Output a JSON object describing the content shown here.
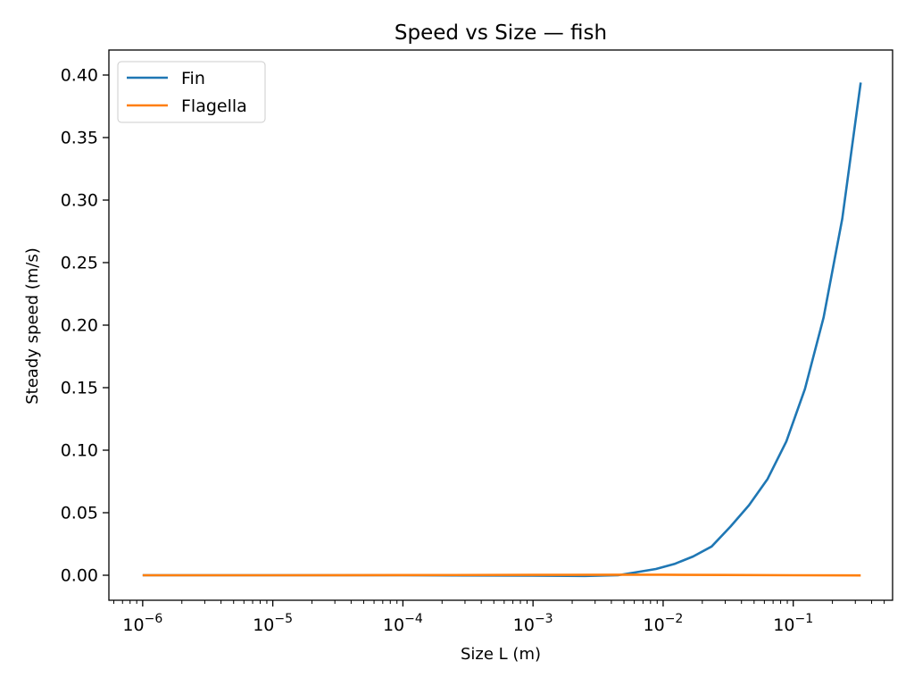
{
  "chart_data": {
    "type": "line",
    "title": "Speed vs Size — fish",
    "xlabel": "Size L (m)",
    "ylabel": "Steady speed (m/s)",
    "xscale": "log",
    "xlim": [
      5.5e-07,
      0.58
    ],
    "ylim": [
      -0.02,
      0.42
    ],
    "grid": false,
    "legend_position": "top-left",
    "x_ticks": [
      {
        "value": 1e-06,
        "base": "10",
        "exp": "−6"
      },
      {
        "value": 1e-05,
        "base": "10",
        "exp": "−5"
      },
      {
        "value": 0.0001,
        "base": "10",
        "exp": "−4"
      },
      {
        "value": 0.001,
        "base": "10",
        "exp": "−3"
      },
      {
        "value": 0.01,
        "base": "10",
        "exp": "−2"
      },
      {
        "value": 0.1,
        "base": "10",
        "exp": "−1"
      }
    ],
    "y_ticks": [
      "0.00",
      "0.05",
      "0.10",
      "0.15",
      "0.20",
      "0.25",
      "0.30",
      "0.35",
      "0.40"
    ],
    "series": [
      {
        "name": "Fin",
        "color": "#1f77b4",
        "x": [
          1e-06,
          1e-05,
          0.0001,
          0.001,
          0.0025,
          0.0045,
          0.0063,
          0.0088,
          0.0122,
          0.017,
          0.0236,
          0.033,
          0.0457,
          0.0635,
          0.0885,
          0.123,
          0.171,
          0.238,
          0.33
        ],
        "y": [
          0.0,
          0.0,
          0.0,
          -0.0003,
          -0.0006,
          0.0,
          0.0025,
          0.005,
          0.009,
          0.015,
          0.023,
          0.039,
          0.056,
          0.077,
          0.107,
          0.149,
          0.206,
          0.285,
          0.394
        ]
      },
      {
        "name": "Flagella",
        "color": "#ff7f0e",
        "x": [
          1e-06,
          1e-05,
          0.0001,
          0.001,
          0.0045,
          0.01,
          0.03,
          0.1,
          0.33
        ],
        "y": [
          0.0,
          0.0,
          0.0001,
          0.0003,
          0.0004,
          0.0004,
          0.0002,
          0.0,
          -0.0001
        ]
      }
    ]
  }
}
